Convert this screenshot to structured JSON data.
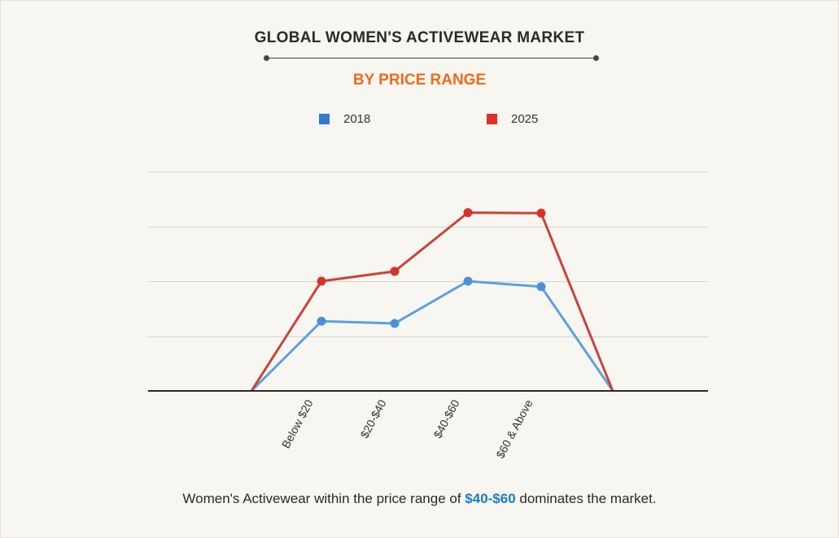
{
  "header": {
    "title": "GLOBAL WOMEN'S ACTIVEWEAR MARKET",
    "subtitle": "BY PRICE RANGE"
  },
  "colors": {
    "series_2018": "#4a90d9",
    "series_2025": "#d9312b",
    "subtitle": "#f06a1d",
    "highlight": "#1a7cc4"
  },
  "chart_data": {
    "type": "line",
    "title": "GLOBAL WOMEN'S ACTIVEWEAR MARKET",
    "subtitle": "BY PRICE RANGE",
    "categories": [
      "Below $20",
      "$20-$40",
      "$40-$60",
      "$60 & Above"
    ],
    "y_axis_labels": "none",
    "ylim": [
      0,
      4
    ],
    "grid": true,
    "legend": "top-center",
    "series": [
      {
        "name": "2018",
        "color": "#4a90d9",
        "values": [
          1.27,
          1.23,
          2.0,
          1.9
        ]
      },
      {
        "name": "2025",
        "color": "#d9312b",
        "values": [
          2.0,
          2.18,
          3.25,
          3.24
        ]
      }
    ]
  },
  "caption": {
    "prefix": "Women's Activewear within the price range of ",
    "highlight": "$40-$60",
    "suffix": " dominates the market."
  }
}
